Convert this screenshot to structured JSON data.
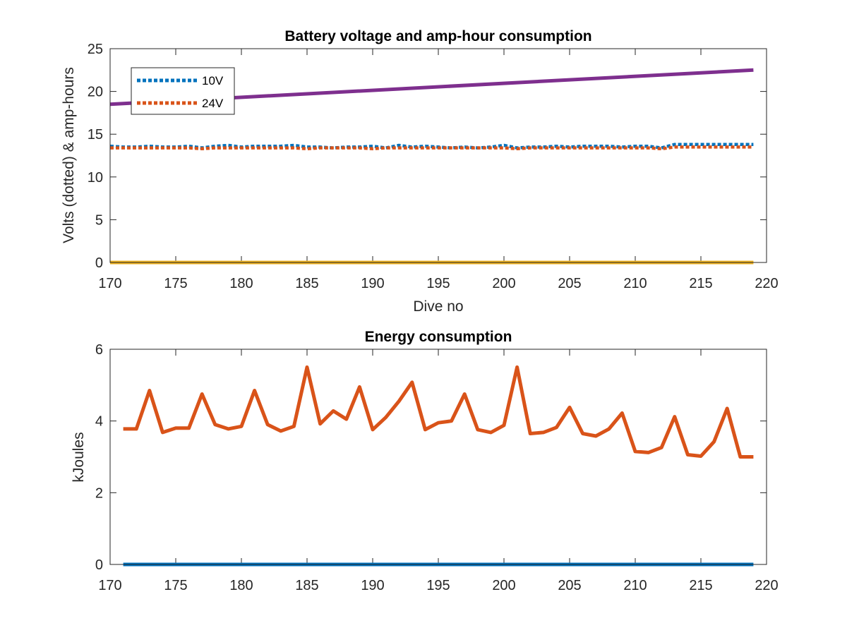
{
  "chart_data": [
    {
      "type": "line",
      "title": "Battery voltage and amp-hour consumption",
      "xlabel": "Dive no",
      "ylabel": "Volts (dotted) & amp-hours",
      "xlim": [
        170,
        220
      ],
      "ylim": [
        0,
        25
      ],
      "xticks": [
        170,
        175,
        180,
        185,
        190,
        195,
        200,
        205,
        210,
        215,
        220
      ],
      "yticks": [
        0,
        5,
        10,
        15,
        20,
        25
      ],
      "grid": false,
      "legend_location": "top-left",
      "series": [
        {
          "name": "10V",
          "style": "dotted",
          "color": "#0072BD",
          "x": [
            170,
            171,
            172,
            173,
            174,
            175,
            176,
            177,
            178,
            179,
            180,
            181,
            182,
            183,
            184,
            185,
            186,
            187,
            188,
            189,
            190,
            191,
            192,
            193,
            194,
            195,
            196,
            197,
            198,
            199,
            200,
            201,
            202,
            203,
            204,
            205,
            206,
            207,
            208,
            209,
            210,
            211,
            212,
            213,
            214,
            215,
            216,
            217,
            218,
            219
          ],
          "y": [
            13.6,
            13.5,
            13.5,
            13.6,
            13.5,
            13.5,
            13.6,
            13.4,
            13.6,
            13.7,
            13.5,
            13.6,
            13.6,
            13.6,
            13.7,
            13.5,
            13.5,
            13.4,
            13.5,
            13.5,
            13.6,
            13.4,
            13.7,
            13.5,
            13.6,
            13.5,
            13.4,
            13.5,
            13.4,
            13.5,
            13.7,
            13.4,
            13.5,
            13.5,
            13.6,
            13.5,
            13.6,
            13.6,
            13.6,
            13.5,
            13.6,
            13.6,
            13.4,
            13.8,
            13.8,
            13.8,
            13.8,
            13.8,
            13.8,
            13.8
          ]
        },
        {
          "name": "24V",
          "style": "dotted",
          "color": "#D95319",
          "x": [
            170,
            171,
            172,
            173,
            174,
            175,
            176,
            177,
            178,
            179,
            180,
            181,
            182,
            183,
            184,
            185,
            186,
            187,
            188,
            189,
            190,
            191,
            192,
            193,
            194,
            195,
            196,
            197,
            198,
            199,
            200,
            201,
            202,
            203,
            204,
            205,
            206,
            207,
            208,
            209,
            210,
            211,
            212,
            213,
            214,
            215,
            216,
            217,
            218,
            219
          ],
          "y": [
            13.4,
            13.4,
            13.4,
            13.4,
            13.4,
            13.4,
            13.4,
            13.3,
            13.4,
            13.4,
            13.4,
            13.4,
            13.4,
            13.4,
            13.4,
            13.3,
            13.4,
            13.4,
            13.4,
            13.4,
            13.3,
            13.4,
            13.4,
            13.4,
            13.4,
            13.4,
            13.4,
            13.4,
            13.4,
            13.4,
            13.4,
            13.3,
            13.4,
            13.4,
            13.4,
            13.4,
            13.4,
            13.4,
            13.4,
            13.4,
            13.4,
            13.4,
            13.3,
            13.5,
            13.5,
            13.5,
            13.5,
            13.5,
            13.5,
            13.5
          ]
        },
        {
          "style": "solid",
          "color": "#EDB120",
          "x": [
            170,
            219
          ],
          "y": [
            0,
            0
          ]
        },
        {
          "style": "solid",
          "color": "#7E2F8E",
          "x": [
            170,
            219
          ],
          "y": [
            18.5,
            22.5
          ]
        }
      ]
    },
    {
      "type": "line",
      "title": "Energy consumption",
      "xlabel": "",
      "ylabel": "kJoules",
      "xlim": [
        170,
        220
      ],
      "ylim": [
        0,
        6
      ],
      "xticks": [
        170,
        175,
        180,
        185,
        190,
        195,
        200,
        205,
        210,
        215,
        220
      ],
      "yticks": [
        0,
        2,
        4,
        6
      ],
      "grid": false,
      "series": [
        {
          "style": "solid",
          "color": "#0072BD",
          "x": [
            171,
            219
          ],
          "y": [
            0,
            0
          ]
        },
        {
          "style": "solid",
          "color": "#D95319",
          "x": [
            171,
            172,
            173,
            174,
            175,
            176,
            177,
            178,
            179,
            180,
            181,
            182,
            183,
            184,
            185,
            186,
            187,
            188,
            189,
            190,
            191,
            192,
            193,
            194,
            195,
            196,
            197,
            198,
            199,
            200,
            201,
            202,
            203,
            204,
            205,
            206,
            207,
            208,
            209,
            210,
            211,
            212,
            213,
            214,
            215,
            216,
            217,
            218,
            219
          ],
          "y": [
            3.78,
            3.78,
            4.85,
            3.68,
            3.8,
            3.8,
            4.75,
            3.9,
            3.78,
            3.85,
            4.85,
            3.9,
            3.72,
            3.85,
            5.5,
            3.92,
            4.28,
            4.05,
            4.95,
            3.76,
            4.1,
            4.55,
            5.08,
            3.76,
            3.95,
            4.0,
            4.75,
            3.76,
            3.68,
            3.88,
            5.5,
            3.65,
            3.68,
            3.82,
            4.38,
            3.65,
            3.58,
            3.78,
            4.22,
            3.15,
            3.12,
            3.26,
            4.12,
            3.06,
            3.02,
            3.42,
            4.35,
            3.0,
            3.0
          ]
        }
      ]
    }
  ]
}
